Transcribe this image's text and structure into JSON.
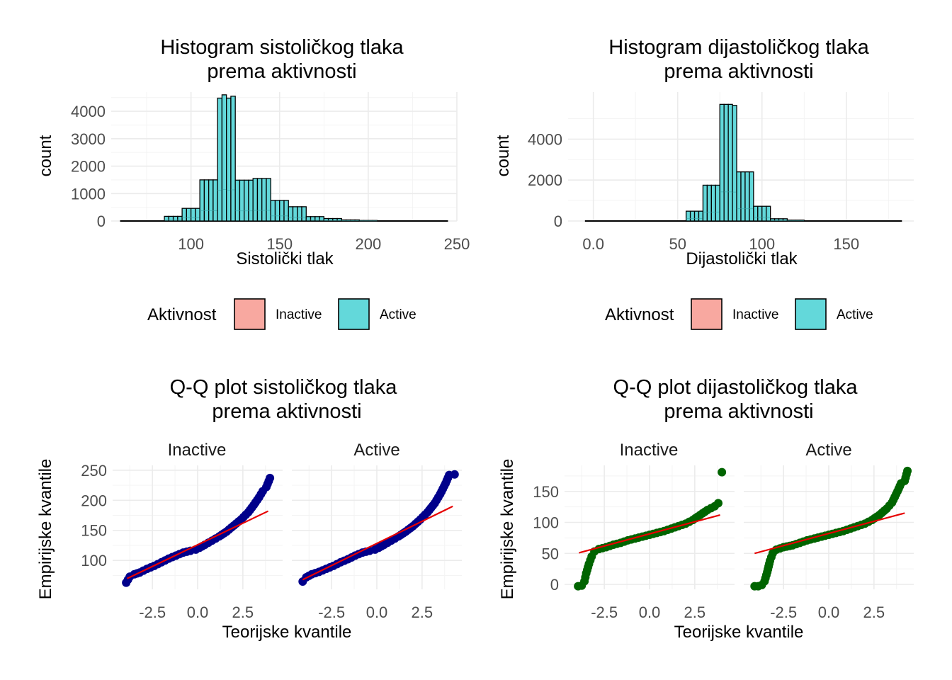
{
  "legend": {
    "title": "Aktivnost",
    "items": [
      {
        "label": "Inactive",
        "color": "#F8A8A0"
      },
      {
        "label": "Active",
        "color": "#63D8DA"
      }
    ]
  },
  "chart_data": [
    {
      "type": "bar",
      "id": "hist_sys",
      "title": "Histogram sistoličkog tlaka",
      "subtitle": "prema aktivnosti",
      "xlabel": "Sistolički tlak",
      "ylabel": "count",
      "xlim": [
        55,
        250
      ],
      "ylim": [
        0,
        4700
      ],
      "xticks": [
        100,
        150,
        200,
        250
      ],
      "yticks": [
        0,
        1000,
        2000,
        3000,
        4000
      ],
      "bin_width": 2.5,
      "x_start": 60,
      "x_end": 245,
      "bars": [
        {
          "x0": 85,
          "x1": 95,
          "count": 170
        },
        {
          "x0": 95,
          "x1": 105,
          "count": 460
        },
        {
          "x0": 105,
          "x1": 115,
          "count": 1500
        },
        {
          "x0": 115,
          "x1": 117.5,
          "count": 4480
        },
        {
          "x0": 117.5,
          "x1": 120,
          "count": 4600
        },
        {
          "x0": 120,
          "x1": 122.5,
          "count": 4480
        },
        {
          "x0": 122.5,
          "x1": 125,
          "count": 4550
        },
        {
          "x0": 125,
          "x1": 135,
          "count": 1490
        },
        {
          "x0": 135,
          "x1": 145,
          "count": 1550
        },
        {
          "x0": 145,
          "x1": 155,
          "count": 750
        },
        {
          "x0": 155,
          "x1": 165,
          "count": 520
        },
        {
          "x0": 165,
          "x1": 175,
          "count": 160
        },
        {
          "x0": 175,
          "x1": 185,
          "count": 90
        },
        {
          "x0": 185,
          "x1": 195,
          "count": 40
        },
        {
          "x0": 195,
          "x1": 205,
          "count": 20
        }
      ],
      "series": [
        {
          "name": "Inactive",
          "color": "#F8A8A0"
        },
        {
          "name": "Active",
          "color": "#63D8DA"
        }
      ]
    },
    {
      "type": "bar",
      "id": "hist_dia",
      "title": "Histogram dijastoličkog tlaka",
      "subtitle": "prema aktivnosti",
      "xlabel": "Dijastolički tlak",
      "ylabel": "count",
      "xlim": [
        -15,
        190
      ],
      "ylim": [
        0,
        6300
      ],
      "xticks": [
        0,
        50,
        100,
        150
      ],
      "yticks": [
        0,
        2000,
        4000
      ],
      "bin_width": 2.5,
      "x_start": -5,
      "x_end": 183,
      "bars": [
        {
          "x0": 55,
          "x1": 65,
          "count": 480
        },
        {
          "x0": 65,
          "x1": 75,
          "count": 1750
        },
        {
          "x0": 75,
          "x1": 77.5,
          "count": 5700
        },
        {
          "x0": 77.5,
          "x1": 82.5,
          "count": 5700
        },
        {
          "x0": 82.5,
          "x1": 85,
          "count": 5650
        },
        {
          "x0": 85,
          "x1": 95,
          "count": 2400
        },
        {
          "x0": 95,
          "x1": 105,
          "count": 720
        },
        {
          "x0": 105,
          "x1": 115,
          "count": 110
        },
        {
          "x0": 115,
          "x1": 125,
          "count": 45
        }
      ],
      "series": [
        {
          "name": "Inactive",
          "color": "#F8A8A0"
        },
        {
          "name": "Active",
          "color": "#63D8DA"
        }
      ]
    },
    {
      "type": "scatter",
      "id": "qq_sys",
      "title": "Q-Q plot sistoličkog tlaka",
      "subtitle": "prema aktivnosti",
      "xlabel": "Teorijske kvantile",
      "ylabel": "Empirijske kvantile",
      "xlim": [
        -4.7,
        4.7
      ],
      "ylim": [
        52,
        258
      ],
      "xticks": [
        -2.5,
        0.0,
        2.5
      ],
      "yticks": [
        100,
        150,
        200,
        250
      ],
      "point_color": "#00008B",
      "line_color": "#E60000",
      "facets": [
        {
          "label": "Inactive",
          "line": [
            [
              -3.9,
              70
            ],
            [
              3.9,
              182
            ]
          ],
          "points": [
            [
              -3.95,
              63
            ],
            [
              -3.75,
              73
            ],
            [
              -3.5,
              77
            ],
            [
              -3.2,
              80
            ],
            [
              -2.8,
              86
            ],
            [
              -2.4,
              91
            ],
            [
              -2.0,
              97
            ],
            [
              -1.6,
              103
            ],
            [
              -1.2,
              108
            ],
            [
              -0.8,
              113
            ],
            [
              -0.4,
              116
            ],
            [
              -0.1,
              118
            ],
            [
              0.1,
              121
            ],
            [
              0.4,
              126
            ],
            [
              0.8,
              133
            ],
            [
              1.2,
              140
            ],
            [
              1.6,
              148
            ],
            [
              2.0,
              158
            ],
            [
              2.4,
              168
            ],
            [
              2.8,
              180
            ],
            [
              3.1,
              192
            ],
            [
              3.4,
              205
            ],
            [
              3.6,
              215
            ],
            [
              3.8,
              222
            ],
            [
              4.0,
              237
            ]
          ]
        },
        {
          "label": "Active",
          "line": [
            [
              -4.1,
              68
            ],
            [
              4.2,
              190
            ]
          ],
          "points": [
            [
              -4.1,
              65
            ],
            [
              -3.9,
              72
            ],
            [
              -3.6,
              77
            ],
            [
              -3.2,
              81
            ],
            [
              -2.8,
              86
            ],
            [
              -2.4,
              91
            ],
            [
              -2.0,
              97
            ],
            [
              -1.6,
              102
            ],
            [
              -1.2,
              108
            ],
            [
              -0.8,
              113
            ],
            [
              -0.4,
              116
            ],
            [
              -0.1,
              118
            ],
            [
              0.1,
              121
            ],
            [
              0.4,
              126
            ],
            [
              0.8,
              133
            ],
            [
              1.2,
              140
            ],
            [
              1.6,
              148
            ],
            [
              2.0,
              157
            ],
            [
              2.4,
              168
            ],
            [
              2.8,
              180
            ],
            [
              3.2,
              195
            ],
            [
              3.5,
              210
            ],
            [
              3.8,
              228
            ],
            [
              4.0,
              242
            ],
            [
              4.3,
              243
            ]
          ]
        }
      ]
    },
    {
      "type": "scatter",
      "id": "qq_dia",
      "title": "Q-Q plot dijastoličkog tlaka",
      "subtitle": "prema aktivnosti",
      "xlabel": "Teorijske kvantile",
      "ylabel": "Empirijske kvantile",
      "xlim": [
        -4.7,
        4.7
      ],
      "ylim": [
        -8,
        192
      ],
      "xticks": [
        -2.5,
        0.0,
        2.5
      ],
      "yticks": [
        0,
        50,
        100,
        150
      ],
      "point_color": "#006400",
      "line_color": "#E60000",
      "facets": [
        {
          "label": "Inactive",
          "line": [
            [
              -3.9,
              51
            ],
            [
              3.9,
              112
            ]
          ],
          "points": [
            [
              -3.95,
              -3
            ],
            [
              -3.75,
              -2
            ],
            [
              -3.6,
              5
            ],
            [
              -3.5,
              18
            ],
            [
              -3.35,
              33
            ],
            [
              -3.2,
              45
            ],
            [
              -3.05,
              53
            ],
            [
              -2.8,
              57
            ],
            [
              -2.4,
              60
            ],
            [
              -2.0,
              64
            ],
            [
              -1.6,
              67
            ],
            [
              -1.2,
              71
            ],
            [
              -0.8,
              74
            ],
            [
              -0.4,
              77
            ],
            [
              0.0,
              80
            ],
            [
              0.4,
              83
            ],
            [
              0.8,
              86
            ],
            [
              1.2,
              90
            ],
            [
              1.6,
              94
            ],
            [
              2.0,
              98
            ],
            [
              2.4,
              104
            ],
            [
              2.8,
              112
            ],
            [
              3.2,
              120
            ],
            [
              3.6,
              126
            ],
            [
              3.8,
              131
            ],
            [
              4.0,
              181
            ]
          ]
        },
        {
          "label": "Active",
          "line": [
            [
              -4.1,
              50
            ],
            [
              4.2,
              115
            ]
          ],
          "points": [
            [
              -4.1,
              -3
            ],
            [
              -3.9,
              -3
            ],
            [
              -3.7,
              -1
            ],
            [
              -3.55,
              5
            ],
            [
              -3.4,
              20
            ],
            [
              -3.25,
              38
            ],
            [
              -3.1,
              50
            ],
            [
              -2.9,
              56
            ],
            [
              -2.5,
              60
            ],
            [
              -2.0,
              63
            ],
            [
              -1.6,
              67
            ],
            [
              -1.2,
              71
            ],
            [
              -0.8,
              74
            ],
            [
              -0.4,
              77
            ],
            [
              0.0,
              80
            ],
            [
              0.4,
              83
            ],
            [
              0.8,
              86
            ],
            [
              1.2,
              90
            ],
            [
              1.6,
              94
            ],
            [
              2.0,
              98
            ],
            [
              2.4,
              104
            ],
            [
              2.8,
              112
            ],
            [
              3.2,
              122
            ],
            [
              3.5,
              132
            ],
            [
              3.8,
              150
            ],
            [
              4.0,
              163
            ],
            [
              4.2,
              167
            ],
            [
              4.35,
              183
            ]
          ]
        }
      ]
    }
  ]
}
